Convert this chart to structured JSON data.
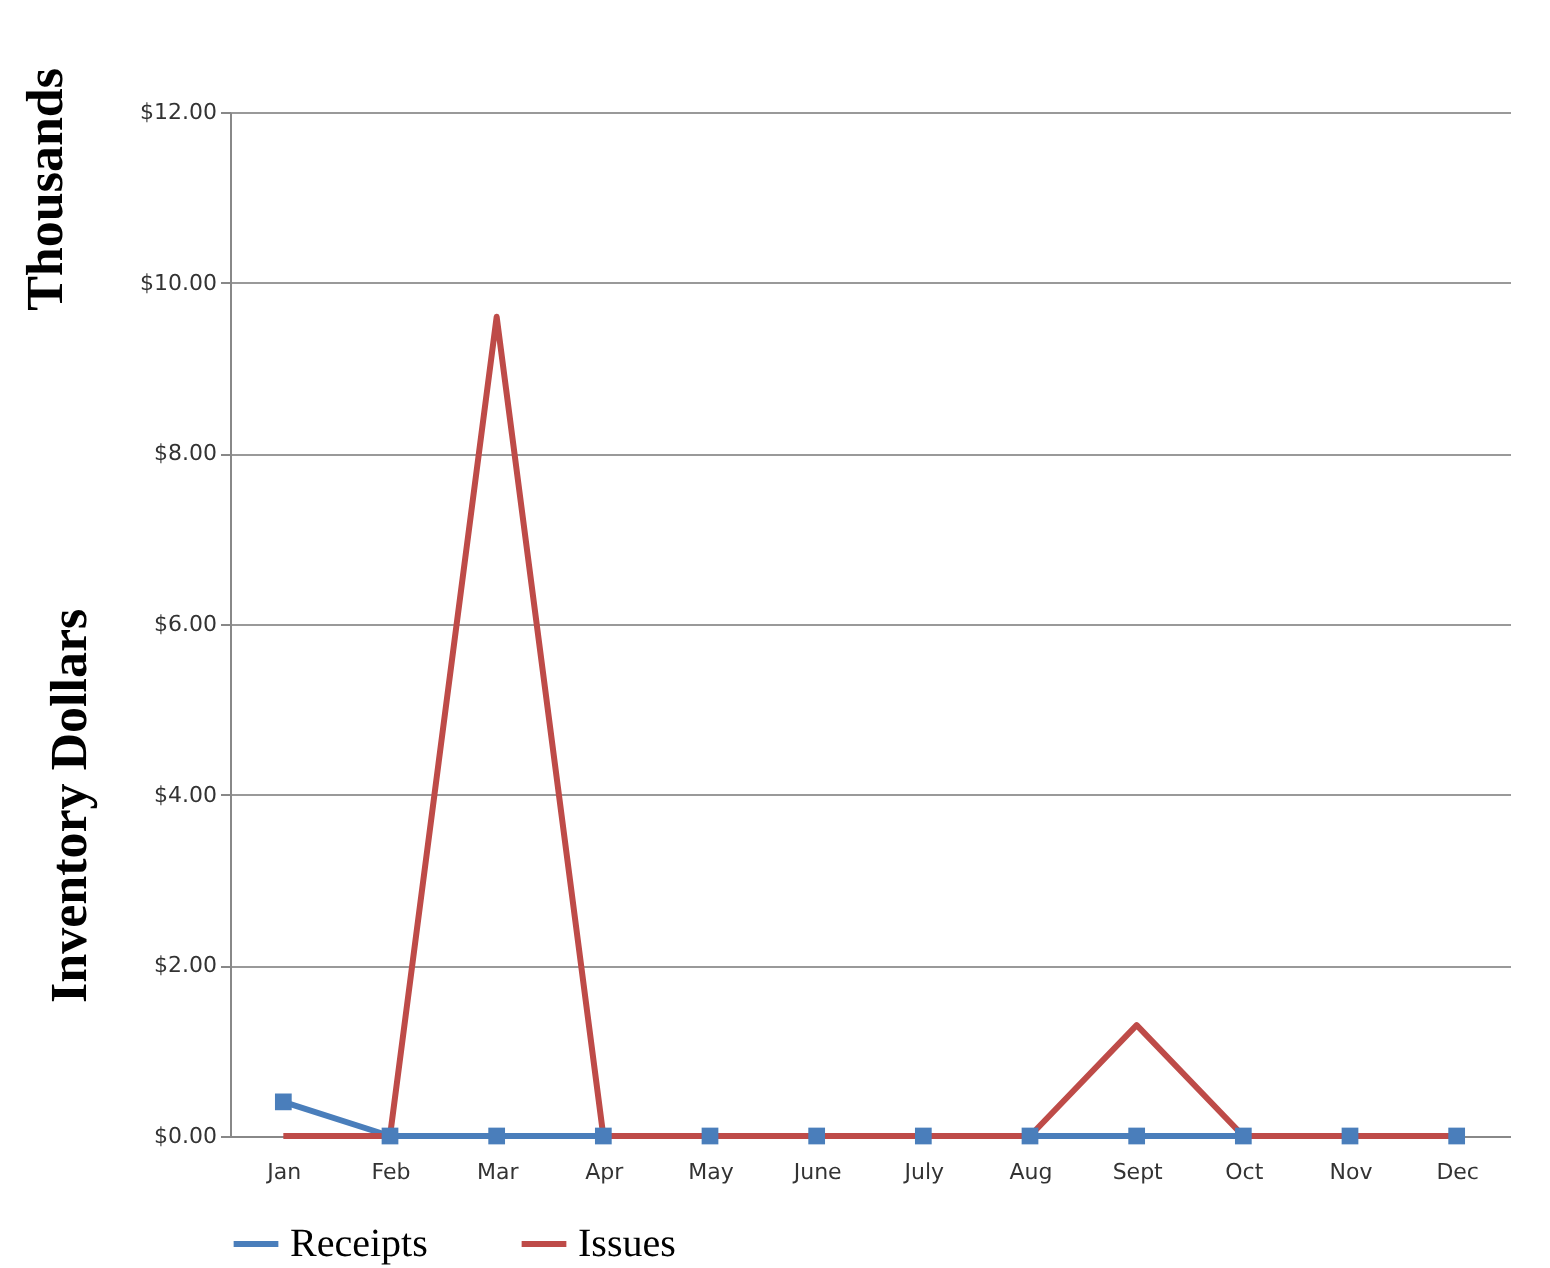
{
  "chart_data": {
    "type": "line",
    "ylabel": "Inventory Dollars",
    "annotations": [
      "Thousands"
    ],
    "categories": [
      "Jan",
      "Feb",
      "Mar",
      "Apr",
      "May",
      "June",
      "July",
      "Aug",
      "Sept",
      "Oct",
      "Nov",
      "Dec"
    ],
    "series": [
      {
        "name": "Receipts",
        "color": "#4a7ebb",
        "marker": "square",
        "values": [
          0.4,
          0,
          0,
          0,
          0,
          0,
          0,
          0,
          0,
          0,
          0,
          0
        ]
      },
      {
        "name": "Issues",
        "color": "#be4b48",
        "marker": "none",
        "values": [
          0,
          0,
          9.6,
          0,
          0,
          0,
          0,
          0,
          1.3,
          0,
          0,
          0
        ]
      }
    ],
    "ylim": [
      0,
      12
    ],
    "yticks": [
      {
        "value": 0,
        "label": "$0.00"
      },
      {
        "value": 2,
        "label": "$2.00"
      },
      {
        "value": 4,
        "label": "$4.00"
      },
      {
        "value": 6,
        "label": "$6.00"
      },
      {
        "value": 8,
        "label": "$8.00"
      },
      {
        "value": 10,
        "label": "$10.00"
      },
      {
        "value": 12,
        "label": "$12.00"
      }
    ],
    "grid": "y",
    "legend": "bottom"
  }
}
